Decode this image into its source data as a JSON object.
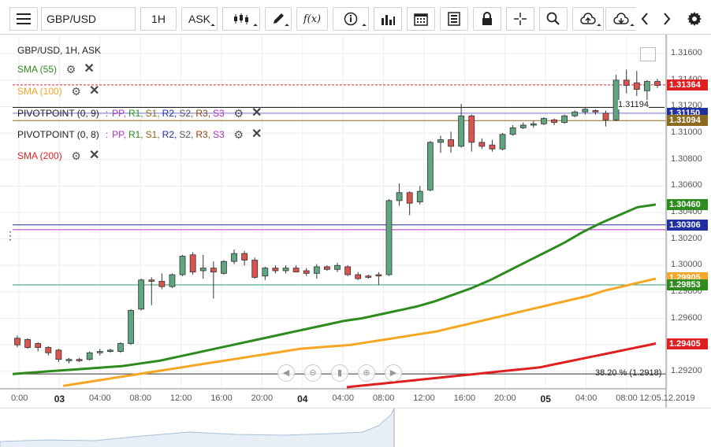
{
  "toolbar": {
    "symbol": "GBP/USD",
    "timeframe": "1H",
    "price_type": "ASK"
  },
  "legend": {
    "header": "GBP/USD, 1H, ASK",
    "sma55": "SMA (55)",
    "sma100": "SMA (100)",
    "pivot1_name": "PIVOTPOINT (0, 9)",
    "pivot1_items": [
      "PP",
      "R1",
      "S1",
      "R2",
      "S2",
      "R3",
      "S3"
    ],
    "pivot2_name": "PIVOTPOINT (0, 8)",
    "pivot2_items": [
      "PP",
      "R1",
      "S1",
      "R2",
      "S2",
      "R3",
      "S3"
    ],
    "sma200": "SMA (200)",
    "colors": {
      "sma55": "#2e8b1e",
      "sma100": "#f5a623",
      "sma200": "#e02020",
      "pp": "#b030c0",
      "r1": "#2e8b1e",
      "s1": "#8b6a1e",
      "r2": "#2030a0",
      "s2": "#555555",
      "r3": "#8b4513",
      "s3": "#b030c0"
    }
  },
  "price_axis": {
    "ticks": [
      "1.31600",
      "1.31400",
      "1.31200",
      "1.31000",
      "1.30800",
      "1.30600",
      "1.30400",
      "1.30200",
      "1.30000",
      "1.29800",
      "1.29600",
      "1.29400",
      "1.29200"
    ],
    "tags": [
      {
        "label": "1.31364",
        "color": "#e02020",
        "value": 1.31364
      },
      {
        "label": "1.31150",
        "color": "#2030a0",
        "value": 1.3115
      },
      {
        "label": "1.31094",
        "color": "#8b6a1e",
        "value": 1.31094
      },
      {
        "label": "1.30460",
        "color": "#2e8b1e",
        "value": 1.3046
      },
      {
        "label": "1.30306",
        "color": "#2030a0",
        "value": 1.30306
      },
      {
        "label": "1.29905",
        "color": "#f5a623",
        "value": 1.29905
      },
      {
        "label": "1.29853",
        "color": "#2e8b1e",
        "value": 1.29853
      },
      {
        "label": "1.29405",
        "color": "#e02020",
        "value": 1.29405
      }
    ]
  },
  "time_axis": {
    "labels": [
      "0:00",
      "03",
      "04:00",
      "08:00",
      "12:00",
      "16:00",
      "20:00",
      "04",
      "04:00",
      "08:00",
      "12:00",
      "16:00",
      "20:00",
      "05",
      "04:00",
      "08:00",
      "12:05.12.2019"
    ]
  },
  "annotations": {
    "crosshair_value": "1.31194",
    "fib_label": "38.20 % (1.2918)"
  },
  "chart_data": {
    "type": "candlestick",
    "title": "GBP/USD, 1H, ASK",
    "ylim": [
      1.2908,
      1.3172
    ],
    "candles": [
      {
        "o": 1.2945,
        "h": 1.2947,
        "l": 1.2938,
        "c": 1.294
      },
      {
        "o": 1.2944,
        "h": 1.2945,
        "l": 1.2937,
        "c": 1.2938
      },
      {
        "o": 1.2941,
        "h": 1.2942,
        "l": 1.2935,
        "c": 1.2938
      },
      {
        "o": 1.2938,
        "h": 1.2939,
        "l": 1.2932,
        "c": 1.2934
      },
      {
        "o": 1.2936,
        "h": 1.2937,
        "l": 1.2927,
        "c": 1.2929
      },
      {
        "o": 1.2928,
        "h": 1.293,
        "l": 1.2926,
        "c": 1.2929
      },
      {
        "o": 1.2929,
        "h": 1.293,
        "l": 1.2927,
        "c": 1.2928
      },
      {
        "o": 1.2929,
        "h": 1.2935,
        "l": 1.2928,
        "c": 1.2934
      },
      {
        "o": 1.2934,
        "h": 1.2937,
        "l": 1.2932,
        "c": 1.2935
      },
      {
        "o": 1.2935,
        "h": 1.2937,
        "l": 1.2934,
        "c": 1.2936
      },
      {
        "o": 1.2935,
        "h": 1.2942,
        "l": 1.2934,
        "c": 1.2941
      },
      {
        "o": 1.2941,
        "h": 1.2967,
        "l": 1.294,
        "c": 1.2966
      },
      {
        "o": 1.2967,
        "h": 1.299,
        "l": 1.2966,
        "c": 1.2989
      },
      {
        "o": 1.2989,
        "h": 1.2991,
        "l": 1.297,
        "c": 1.2988
      },
      {
        "o": 1.2988,
        "h": 1.2994,
        "l": 1.2982,
        "c": 1.2984
      },
      {
        "o": 1.2984,
        "h": 1.2994,
        "l": 1.2983,
        "c": 1.2993
      },
      {
        "o": 1.2993,
        "h": 1.3008,
        "l": 1.2992,
        "c": 1.3007
      },
      {
        "o": 1.3008,
        "h": 1.301,
        "l": 1.2993,
        "c": 1.2995
      },
      {
        "o": 1.2996,
        "h": 1.3008,
        "l": 1.299,
        "c": 1.2998
      },
      {
        "o": 1.2998,
        "h": 1.3003,
        "l": 1.2975,
        "c": 1.2995
      },
      {
        "o": 1.2994,
        "h": 1.3004,
        "l": 1.2993,
        "c": 1.3003
      },
      {
        "o": 1.3003,
        "h": 1.3012,
        "l": 1.3001,
        "c": 1.3009
      },
      {
        "o": 1.3009,
        "h": 1.3011,
        "l": 1.3,
        "c": 1.3004
      },
      {
        "o": 1.3004,
        "h": 1.3006,
        "l": 1.299,
        "c": 1.2991
      },
      {
        "o": 1.2992,
        "h": 1.2999,
        "l": 1.2989,
        "c": 1.2998
      },
      {
        "o": 1.2998,
        "h": 1.3,
        "l": 1.2994,
        "c": 1.2996
      },
      {
        "o": 1.2996,
        "h": 1.3,
        "l": 1.2994,
        "c": 1.2998
      },
      {
        "o": 1.2998,
        "h": 1.3,
        "l": 1.2995,
        "c": 1.2995
      },
      {
        "o": 1.2996,
        "h": 1.2998,
        "l": 1.2992,
        "c": 1.2994
      },
      {
        "o": 1.2994,
        "h": 1.3001,
        "l": 1.299,
        "c": 1.2999
      },
      {
        "o": 1.2999,
        "h": 1.3,
        "l": 1.2996,
        "c": 1.2997
      },
      {
        "o": 1.2997,
        "h": 1.3002,
        "l": 1.2995,
        "c": 1.3
      },
      {
        "o": 1.2999,
        "h": 1.3,
        "l": 1.2992,
        "c": 1.2993
      },
      {
        "o": 1.2993,
        "h": 1.2995,
        "l": 1.2989,
        "c": 1.299
      },
      {
        "o": 1.2992,
        "h": 1.2993,
        "l": 1.299,
        "c": 1.2991
      },
      {
        "o": 1.2993,
        "h": 1.2995,
        "l": 1.2985,
        "c": 1.2992
      },
      {
        "o": 1.2993,
        "h": 1.305,
        "l": 1.2992,
        "c": 1.3049
      },
      {
        "o": 1.3049,
        "h": 1.3062,
        "l": 1.3045,
        "c": 1.3055
      },
      {
        "o": 1.3055,
        "h": 1.3056,
        "l": 1.3038,
        "c": 1.3047
      },
      {
        "o": 1.3048,
        "h": 1.306,
        "l": 1.3046,
        "c": 1.3056
      },
      {
        "o": 1.3057,
        "h": 1.3094,
        "l": 1.3056,
        "c": 1.3093
      },
      {
        "o": 1.3093,
        "h": 1.3098,
        "l": 1.3085,
        "c": 1.3095
      },
      {
        "o": 1.3095,
        "h": 1.3101,
        "l": 1.3085,
        "c": 1.309
      },
      {
        "o": 1.309,
        "h": 1.3122,
        "l": 1.3089,
        "c": 1.3113
      },
      {
        "o": 1.3113,
        "h": 1.3114,
        "l": 1.3086,
        "c": 1.3093
      },
      {
        "o": 1.3093,
        "h": 1.3096,
        "l": 1.3088,
        "c": 1.309
      },
      {
        "o": 1.3091,
        "h": 1.3095,
        "l": 1.3086,
        "c": 1.3088
      },
      {
        "o": 1.3088,
        "h": 1.31,
        "l": 1.3087,
        "c": 1.3099
      },
      {
        "o": 1.3099,
        "h": 1.3106,
        "l": 1.3098,
        "c": 1.3104
      },
      {
        "o": 1.3104,
        "h": 1.3108,
        "l": 1.3103,
        "c": 1.3106
      },
      {
        "o": 1.3106,
        "h": 1.3109,
        "l": 1.3104,
        "c": 1.3107
      },
      {
        "o": 1.3107,
        "h": 1.3112,
        "l": 1.3106,
        "c": 1.3111
      },
      {
        "o": 1.311,
        "h": 1.3111,
        "l": 1.3106,
        "c": 1.3108
      },
      {
        "o": 1.3108,
        "h": 1.3114,
        "l": 1.3107,
        "c": 1.3113
      },
      {
        "o": 1.3113,
        "h": 1.3117,
        "l": 1.3112,
        "c": 1.3116
      },
      {
        "o": 1.3116,
        "h": 1.3119,
        "l": 1.3114,
        "c": 1.3118
      },
      {
        "o": 1.3117,
        "h": 1.3118,
        "l": 1.3114,
        "c": 1.3116
      },
      {
        "o": 1.3115,
        "h": 1.3117,
        "l": 1.3105,
        "c": 1.311
      },
      {
        "o": 1.311,
        "h": 1.3144,
        "l": 1.3109,
        "c": 1.314
      },
      {
        "o": 1.314,
        "h": 1.3148,
        "l": 1.313,
        "c": 1.3136
      },
      {
        "o": 1.3138,
        "h": 1.3147,
        "l": 1.3128,
        "c": 1.3133
      },
      {
        "o": 1.3132,
        "h": 1.314,
        "l": 1.3124,
        "c": 1.3139
      },
      {
        "o": 1.3139,
        "h": 1.3141,
        "l": 1.3134,
        "c": 1.3136
      }
    ],
    "sma55": [
      1.2918,
      1.2919,
      1.292,
      1.2921,
      1.2922,
      1.2923,
      1.2924,
      1.2926,
      1.2928,
      1.2931,
      1.2934,
      1.2937,
      1.294,
      1.2943,
      1.2946,
      1.2949,
      1.2952,
      1.2955,
      1.2958,
      1.296,
      1.2963,
      1.2966,
      1.2969,
      1.2973,
      1.2978,
      1.2983,
      1.2989,
      1.2996,
      1.3003,
      1.301,
      1.3017,
      1.3025,
      1.3032,
      1.3038,
      1.3044,
      1.3046
    ],
    "sma100": [
      1.2909,
      1.2911,
      1.2913,
      1.2915,
      1.2917,
      1.2919,
      1.2921,
      1.2923,
      1.2925,
      1.2927,
      1.2929,
      1.2931,
      1.2933,
      1.2935,
      1.2937,
      1.2938,
      1.2939,
      1.294,
      1.2942,
      1.2944,
      1.2946,
      1.2948,
      1.295,
      1.2953,
      1.2956,
      1.2959,
      1.2962,
      1.2965,
      1.2968,
      1.2971,
      1.2974,
      1.2977,
      1.2981,
      1.2984,
      1.2987,
      1.299
    ],
    "sma200": [
      1.2908,
      1.2909,
      1.291,
      1.2911,
      1.2912,
      1.2913,
      1.2914,
      1.2915,
      1.2916,
      1.2917,
      1.2918,
      1.2919,
      1.292,
      1.2921,
      1.2922,
      1.2923,
      1.2925,
      1.2927,
      1.2929,
      1.2931,
      1.2933,
      1.2935,
      1.2937,
      1.2939,
      1.2941
    ],
    "horizontal_lines": [
      {
        "value": 1.31364,
        "color": "#e02020",
        "dashed": true
      },
      {
        "value": 1.3115,
        "color": "#7070d0",
        "dashed": false
      },
      {
        "value": 1.31094,
        "color": "#8b6a1e",
        "dashed": false
      },
      {
        "value": 1.30306,
        "color": "#2030a0",
        "dashed": false
      },
      {
        "value": 1.3027,
        "color": "#b030c0",
        "dashed": false
      },
      {
        "value": 1.29853,
        "color": "#2e9b6e",
        "dashed": false
      },
      {
        "value": 1.2918,
        "color": "#333333",
        "dashed": false
      }
    ]
  }
}
